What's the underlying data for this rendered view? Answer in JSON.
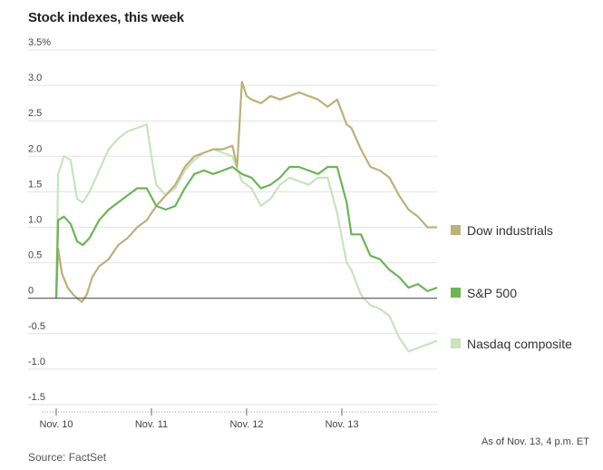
{
  "title": "Stock indexes, this week",
  "source": "Source: FactSet",
  "note": "As of Nov. 13, 4 p.m. ET",
  "chart_data": {
    "type": "line",
    "title": "Stock indexes, this week",
    "xlabel": "",
    "ylabel": "",
    "y_unit": "%",
    "ylim": [
      -1.5,
      3.5
    ],
    "xlim": [
      0,
      4
    ],
    "yticks": [
      3.5,
      3.0,
      2.5,
      2.0,
      1.5,
      1.0,
      0.5,
      0,
      -0.5,
      -1.0,
      -1.5
    ],
    "ytick_labels": [
      "3.5%",
      "3.0",
      "2.5",
      "2.0",
      "1.5",
      "1.0",
      "0.5",
      "0",
      "-0.5",
      "-1.0",
      "-1.5"
    ],
    "xticks": [
      0,
      1,
      2,
      3
    ],
    "xtick_labels": [
      "Nov. 10",
      "Nov. 11",
      "Nov. 12",
      "Nov. 13"
    ],
    "grid": "horizontal",
    "legend": "right, at line ends",
    "series": [
      {
        "name": "Dow industrials",
        "color": "#bcb17b",
        "x": [
          0,
          0.02,
          0.06,
          0.12,
          0.18,
          0.22,
          0.27,
          0.32,
          0.38,
          0.45,
          0.55,
          0.65,
          0.75,
          0.85,
          0.95,
          1.05,
          1.15,
          1.25,
          1.35,
          1.45,
          1.55,
          1.65,
          1.75,
          1.85,
          1.9,
          1.95,
          2.0,
          2.05,
          2.15,
          2.25,
          2.35,
          2.45,
          2.55,
          2.65,
          2.75,
          2.85,
          2.95,
          3.05,
          3.1,
          3.2,
          3.3,
          3.4,
          3.5,
          3.6,
          3.7,
          3.8,
          3.9,
          4.0
        ],
        "values": [
          0.0,
          0.7,
          0.35,
          0.15,
          0.05,
          0.0,
          -0.05,
          0.05,
          0.3,
          0.45,
          0.55,
          0.75,
          0.85,
          1.0,
          1.1,
          1.3,
          1.45,
          1.6,
          1.85,
          2.0,
          2.05,
          2.1,
          2.1,
          2.15,
          1.85,
          3.05,
          2.85,
          2.8,
          2.75,
          2.85,
          2.8,
          2.85,
          2.9,
          2.85,
          2.8,
          2.7,
          2.8,
          2.45,
          2.4,
          2.1,
          1.85,
          1.8,
          1.7,
          1.45,
          1.25,
          1.15,
          1.0,
          1.0
        ]
      },
      {
        "name": "S&P 500",
        "color": "#6cb556",
        "x": [
          0,
          0.02,
          0.08,
          0.15,
          0.22,
          0.28,
          0.35,
          0.45,
          0.55,
          0.65,
          0.75,
          0.85,
          0.95,
          1.05,
          1.15,
          1.25,
          1.35,
          1.45,
          1.55,
          1.65,
          1.75,
          1.85,
          1.95,
          2.05,
          2.15,
          2.25,
          2.35,
          2.45,
          2.55,
          2.65,
          2.75,
          2.85,
          2.95,
          3.05,
          3.1,
          3.2,
          3.3,
          3.4,
          3.5,
          3.6,
          3.7,
          3.8,
          3.9,
          4.0
        ],
        "values": [
          0.0,
          1.1,
          1.15,
          1.05,
          0.8,
          0.75,
          0.85,
          1.1,
          1.25,
          1.35,
          1.45,
          1.55,
          1.55,
          1.3,
          1.25,
          1.3,
          1.55,
          1.75,
          1.8,
          1.75,
          1.8,
          1.85,
          1.75,
          1.7,
          1.55,
          1.6,
          1.7,
          1.85,
          1.85,
          1.8,
          1.75,
          1.85,
          1.85,
          1.35,
          0.9,
          0.9,
          0.6,
          0.55,
          0.4,
          0.3,
          0.15,
          0.2,
          0.1,
          0.15
        ]
      },
      {
        "name": "Nasdaq composite",
        "color": "#c9e3bd",
        "x": [
          0,
          0.02,
          0.08,
          0.15,
          0.22,
          0.28,
          0.35,
          0.45,
          0.55,
          0.65,
          0.75,
          0.85,
          0.95,
          1.0,
          1.05,
          1.15,
          1.25,
          1.35,
          1.45,
          1.55,
          1.65,
          1.75,
          1.85,
          1.95,
          2.05,
          2.15,
          2.25,
          2.35,
          2.45,
          2.55,
          2.65,
          2.75,
          2.85,
          2.95,
          3.05,
          3.1,
          3.2,
          3.3,
          3.4,
          3.5,
          3.6,
          3.7,
          3.8,
          3.9,
          4.0
        ],
        "values": [
          0.0,
          1.75,
          2.0,
          1.95,
          1.4,
          1.35,
          1.5,
          1.8,
          2.1,
          2.25,
          2.35,
          2.4,
          2.45,
          2.0,
          1.6,
          1.45,
          1.55,
          1.8,
          1.95,
          2.05,
          2.1,
          2.05,
          2.0,
          1.65,
          1.55,
          1.3,
          1.4,
          1.6,
          1.7,
          1.65,
          1.6,
          1.7,
          1.7,
          1.2,
          0.5,
          0.4,
          0.05,
          -0.1,
          -0.15,
          -0.25,
          -0.55,
          -0.75,
          -0.7,
          -0.65,
          -0.6
        ]
      }
    ]
  }
}
